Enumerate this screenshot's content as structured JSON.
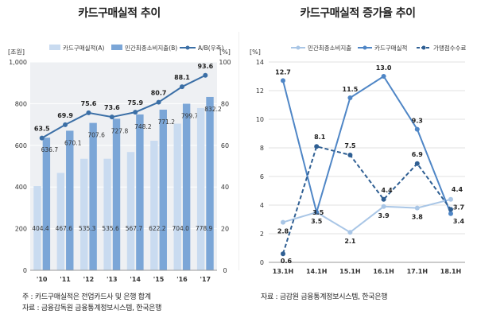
{
  "chart_data": [
    {
      "type": "bar",
      "title": "카드구매실적 추이",
      "ylabel_left": "[조원]",
      "ylabel_right": "[%]",
      "categories": [
        "'10",
        "'11",
        "'12",
        "'13",
        "'14",
        "'15",
        "'16",
        "'17"
      ],
      "ylim_left": [
        0,
        1000
      ],
      "yticks_left": [
        "0",
        "200",
        "400",
        "600",
        "800",
        "1,000"
      ],
      "ylim_right": [
        0,
        100
      ],
      "yticks_right": [
        "0",
        "20",
        "40",
        "60",
        "80",
        "100"
      ],
      "legend_position": "top",
      "series": [
        {
          "name": "카드구매실적(A)",
          "type": "bar",
          "axis": "left",
          "color": "#c9dbf0",
          "values": [
            404.4,
            467.6,
            535.3,
            535.6,
            567.7,
            622.2,
            704.0,
            778.9
          ],
          "labels": [
            "404.4",
            "467.6",
            "535.3",
            "535.6",
            "567.7",
            "622.2",
            "704.0",
            "778.9"
          ]
        },
        {
          "name": "민간최종소비지출(B)",
          "type": "bar",
          "axis": "left",
          "color": "#7ba6d7",
          "values": [
            636.7,
            670.1,
            707.6,
            727.8,
            748.2,
            771.2,
            799.7,
            832.2
          ],
          "labels": [
            "636.7",
            "670.1",
            "707.6",
            "727.8",
            "748.2",
            "771.2",
            "799.7",
            "832.2"
          ]
        },
        {
          "name": "A/B(우축)",
          "type": "line",
          "axis": "right",
          "color": "#3b6fa6",
          "values": [
            63.5,
            69.9,
            75.6,
            73.6,
            75.9,
            80.7,
            88.1,
            93.6
          ],
          "labels": [
            "63.5",
            "69.9",
            "75.6",
            "73.6",
            "75.9",
            "80.7",
            "88.1",
            "93.6"
          ]
        }
      ],
      "notes": [
        "주 : 카드구매실적은 전업카드사 및 은행 합계",
        "자료 : 금융감독원 금융통계정보시스템, 한국은행"
      ]
    },
    {
      "type": "line",
      "title": "카드구매실적 증가율 추이",
      "ylabel": "[%]",
      "categories": [
        "13.1H",
        "14.1H",
        "15.1H",
        "16.1H",
        "17.1H",
        "18.1H"
      ],
      "ylim": [
        0,
        14
      ],
      "yticks": [
        "0",
        "2",
        "4",
        "6",
        "8",
        "10",
        "12",
        "14"
      ],
      "legend_position": "top",
      "series": [
        {
          "name": "민간최종소비지출",
          "style": "solid",
          "color": "#a9c6e6",
          "values": [
            2.8,
            3.5,
            2.1,
            3.9,
            3.8,
            4.4
          ],
          "labels": [
            "2.8",
            "3.5",
            "2.1",
            "3.9",
            "3.8",
            "4.4"
          ]
        },
        {
          "name": "카드구매실적",
          "style": "solid",
          "color": "#4f86c6",
          "values": [
            12.7,
            3.5,
            11.5,
            13.0,
            9.3,
            3.4
          ],
          "labels": [
            "12.7",
            "3.5",
            "11.5",
            "13.0",
            "9.3",
            "3.4"
          ]
        },
        {
          "name": "가맹점수수료",
          "style": "dashed",
          "color": "#2f5f93",
          "values": [
            0.6,
            8.1,
            7.5,
            4.4,
            6.9,
            3.7
          ],
          "labels": [
            "0.6",
            "8.1",
            "7.5",
            "4.4",
            "6.9",
            "3.7"
          ]
        }
      ],
      "notes": [
        "자료 : 금감원 금융통계정보시스템, 한국은행"
      ]
    }
  ]
}
